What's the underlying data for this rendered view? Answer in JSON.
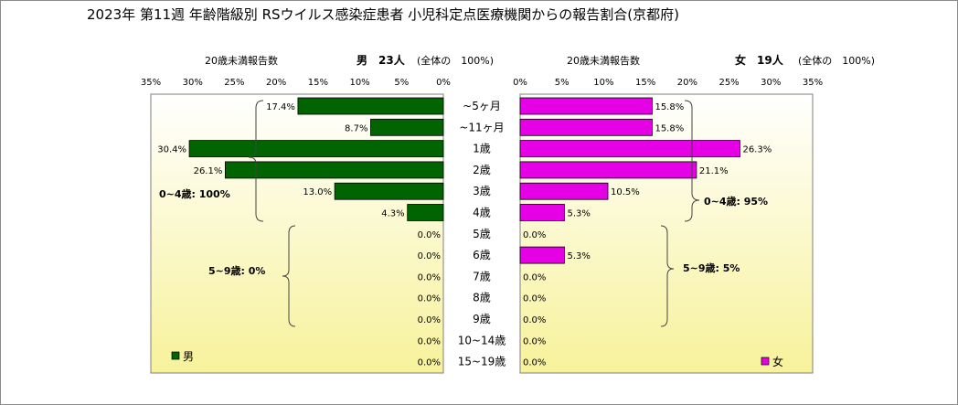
{
  "title": "2023年 第11週 年齢階級別 RSウイルス感染症患者 小児科定点医療機関からの報告割合(京都府)",
  "chart_data": {
    "type": "bar",
    "orientation": "horizontal-butterfly",
    "categories": [
      "~5ヶ月",
      "~11ヶ月",
      "1歳",
      "2歳",
      "3歳",
      "4歳",
      "5歳",
      "6歳",
      "7歳",
      "8歳",
      "9歳",
      "10~14歳",
      "15~19歳"
    ],
    "axis_ticks": [
      "35%",
      "30%",
      "25%",
      "20%",
      "15%",
      "10%",
      "5%",
      "0%"
    ],
    "axis_ticks_right": [
      "0%",
      "5%",
      "10%",
      "15%",
      "20%",
      "25%",
      "30%",
      "35%"
    ],
    "xlim": [
      0,
      35
    ],
    "grid": false,
    "legend_position": "bottom-inside",
    "series": [
      {
        "name": "男",
        "side": "left",
        "header_label": "20歳未満報告数",
        "header_count": "男　23人",
        "header_total": "(全体の　100%)",
        "color": "#006400",
        "values": [
          17.4,
          8.7,
          30.4,
          26.1,
          13.0,
          4.3,
          0.0,
          0.0,
          0.0,
          0.0,
          0.0,
          0.0,
          0.0
        ],
        "value_labels": [
          "17.4%",
          "8.7%",
          "30.4%",
          "26.1%",
          "13.0%",
          "4.3%",
          "0.0%",
          "0.0%",
          "0.0%",
          "0.0%",
          "0.0%",
          "0.0%",
          "0.0%"
        ],
        "annotations": [
          "0~4歳: 100%",
          "5~9歳: 0%"
        ]
      },
      {
        "name": "女",
        "side": "right",
        "header_label": "20歳未満報告数",
        "header_count": "女　19人",
        "header_total": "(全体の　100%)",
        "color": "#e600e6",
        "values": [
          15.8,
          15.8,
          26.3,
          21.1,
          10.5,
          5.3,
          0.0,
          5.3,
          0.0,
          0.0,
          0.0,
          0.0,
          0.0
        ],
        "value_labels": [
          "15.8%",
          "15.8%",
          "26.3%",
          "21.1%",
          "10.5%",
          "5.3%",
          "0.0%",
          "5.3%",
          "0.0%",
          "0.0%",
          "0.0%",
          "0.0%",
          "0.0%"
        ],
        "annotations": [
          "0~4歳: 95%",
          "5~9歳: 5%"
        ]
      }
    ]
  },
  "colors": {
    "plot_top": "#ffffff",
    "plot_bottom": "#f7f29a",
    "male": "#006400",
    "female": "#e600e6"
  }
}
